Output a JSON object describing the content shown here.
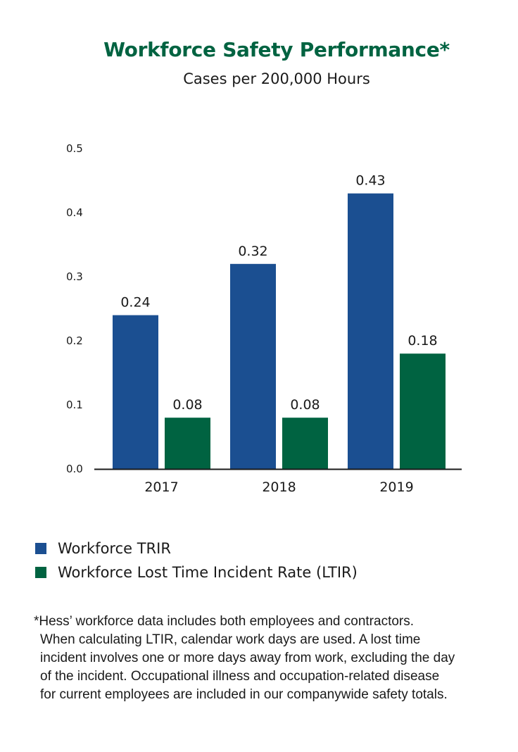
{
  "chart_data": {
    "type": "bar",
    "title": "Workforce Safety Performance*",
    "subtitle": "Cases per 200,000 Hours",
    "categories": [
      "2017",
      "2018",
      "2019"
    ],
    "series": [
      {
        "name": "Workforce TRIR",
        "values": [
          0.24,
          0.32,
          0.43
        ],
        "labels": [
          "0.24",
          "0.32",
          "0.43"
        ],
        "color": "#1b4f91"
      },
      {
        "name": "Workforce Lost Time Incident Rate (LTIR)",
        "values": [
          0.08,
          0.08,
          0.18
        ],
        "labels": [
          "0.08",
          "0.08",
          "0.18"
        ],
        "color": "#006341"
      }
    ],
    "ylim": [
      0,
      0.5
    ],
    "yticks": [
      0.0,
      0.1,
      0.2,
      0.3,
      0.4,
      0.5
    ],
    "ytick_labels": [
      "0.0",
      "0.1",
      "0.2",
      "0.3",
      "0.4",
      "0.5"
    ],
    "xlabel": "",
    "ylabel": "",
    "grid": false,
    "legend_position": "bottom-left"
  },
  "footnote": [
    "*Hess’ workforce data includes both employees and contractors.",
    "When calculating LTIR, calendar work days are used. A lost time",
    "incident involves one or more days away from work, excluding the day",
    "of the incident. Occupational illness and occupation-related disease",
    "for current employees are included in our companywide safety totals."
  ]
}
